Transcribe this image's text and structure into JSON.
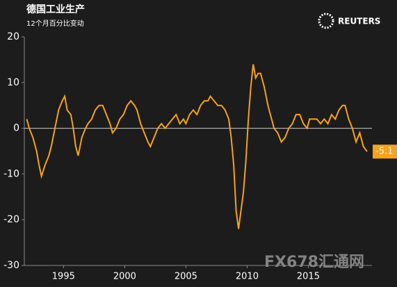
{
  "title": "德国工业生产",
  "subtitle": "12个月百分比变动",
  "logo": "REUTERS",
  "watermark": "FX678汇通网",
  "chart_data": {
    "type": "line",
    "x": [
      1992.0,
      1992.2,
      1992.5,
      1992.8,
      1993.0,
      1993.2,
      1993.5,
      1993.8,
      1994.0,
      1994.3,
      1994.6,
      1994.9,
      1995.1,
      1995.3,
      1995.6,
      1995.8,
      1996.0,
      1996.2,
      1996.5,
      1996.8,
      1997.0,
      1997.3,
      1997.6,
      1997.9,
      1998.2,
      1998.5,
      1998.8,
      1999.0,
      1999.3,
      1999.6,
      1999.9,
      2000.2,
      2000.5,
      2000.8,
      2001.0,
      2001.3,
      2001.6,
      2001.9,
      2002.1,
      2002.4,
      2002.7,
      2003.0,
      2003.3,
      2003.6,
      2003.9,
      2004.2,
      2004.5,
      2004.8,
      2005.0,
      2005.3,
      2005.6,
      2005.9,
      2006.2,
      2006.5,
      2006.8,
      2007.0,
      2007.3,
      2007.6,
      2007.9,
      2008.2,
      2008.5,
      2008.7,
      2008.9,
      2009.1,
      2009.3,
      2009.5,
      2009.7,
      2009.9,
      2010.1,
      2010.3,
      2010.5,
      2010.7,
      2010.9,
      2011.1,
      2011.4,
      2011.7,
      2011.9,
      2012.2,
      2012.5,
      2012.8,
      2013.1,
      2013.4,
      2013.7,
      2014.0,
      2014.3,
      2014.6,
      2014.9,
      2015.1,
      2015.4,
      2015.7,
      2016.0,
      2016.3,
      2016.6,
      2016.9,
      2017.2,
      2017.5,
      2017.8,
      2018.0,
      2018.3,
      2018.6,
      2018.9,
      2019.2,
      2019.5,
      2019.8
    ],
    "series": [
      {
        "color": "#f7a21b",
        "values": [
          2,
          0,
          -2,
          -5,
          -8,
          -10.5,
          -8,
          -6,
          -4,
          0,
          4,
          6,
          7,
          4,
          3,
          0,
          -4,
          -6,
          -2,
          0,
          1,
          2,
          4,
          5,
          5,
          3,
          1,
          -1,
          0,
          2,
          3,
          5,
          6,
          5,
          4,
          1,
          -1,
          -3,
          -4,
          -2,
          0,
          1,
          0,
          1,
          2,
          3,
          1,
          2,
          1,
          3,
          4,
          3,
          5,
          6,
          6,
          7,
          6,
          5,
          5,
          4,
          2,
          -2,
          -8,
          -18,
          -22,
          -18,
          -14,
          -7,
          2,
          9,
          14,
          11,
          12,
          12,
          9,
          5,
          3,
          0,
          -1,
          -3,
          -2,
          0,
          1,
          3,
          3,
          1,
          0,
          2,
          2,
          2,
          1,
          2,
          1,
          3,
          2,
          4,
          5,
          5,
          2,
          0,
          -3,
          -1,
          -4,
          -5.1
        ]
      }
    ],
    "xlim": [
      1991.8,
      2020.2
    ],
    "xticks": [
      1995,
      2000,
      2005,
      2010,
      2015
    ],
    "ylim": [
      -30,
      20
    ],
    "yticks": [
      20,
      10,
      0,
      -10,
      -20,
      -30
    ],
    "zero_line": true
  }
}
